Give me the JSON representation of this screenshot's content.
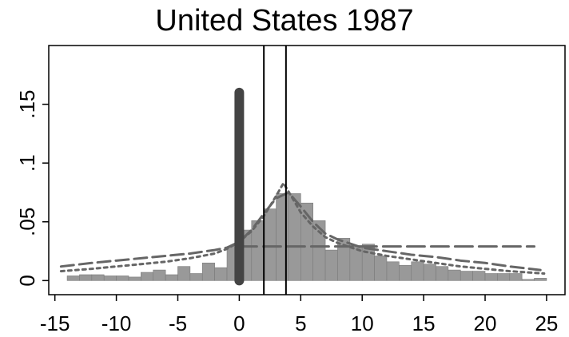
{
  "chart_data": {
    "type": "bar",
    "title": "United States 1987",
    "xlabel": "",
    "ylabel": "",
    "xlim": [
      -15.5,
      26.5
    ],
    "ylim": [
      -0.012,
      0.2
    ],
    "x_ticks": [
      -15,
      -10,
      -5,
      0,
      5,
      10,
      15,
      20,
      25
    ],
    "x_tick_labels": [
      "-15",
      "-10",
      "-5",
      "0",
      "5",
      "10",
      "15",
      "20",
      "25"
    ],
    "y_ticks": [
      0,
      0.05,
      0.1,
      0.15
    ],
    "y_tick_labels": [
      "0",
      ".05",
      ".1",
      ".15"
    ],
    "grid": false,
    "legend": "none",
    "histogram": {
      "bin_width": 1,
      "bin_left_edges": [
        -14,
        -13,
        -12,
        -11,
        -10,
        -9,
        -8,
        -7,
        -6,
        -5,
        -4,
        -3,
        -2,
        -1,
        0,
        1,
        2,
        3,
        4,
        5,
        6,
        7,
        8,
        9,
        10,
        11,
        12,
        13,
        14,
        15,
        16,
        17,
        18,
        19,
        20,
        21,
        22,
        23,
        24
      ],
      "values": [
        0.004,
        0.005,
        0.005,
        0.004,
        0.004,
        0.003,
        0.007,
        0.009,
        0.005,
        0.012,
        0.006,
        0.015,
        0.011,
        0.029,
        0.043,
        0.051,
        0.061,
        0.074,
        0.074,
        0.066,
        0.051,
        0.026,
        0.036,
        0.029,
        0.031,
        0.021,
        0.016,
        0.013,
        0.016,
        0.014,
        0.012,
        0.009,
        0.008,
        0.008,
        0.006,
        0.006,
        0.006,
        0.001,
        0.002
      ],
      "color": "#999999"
    },
    "series": [
      {
        "style": "dashed",
        "x": [
          -14.5,
          -12,
          -10,
          -8,
          -6,
          -4,
          -2,
          -1,
          0,
          1,
          2,
          3,
          4,
          5,
          6,
          7,
          8,
          10,
          12,
          14,
          16,
          18,
          20,
          22,
          24.5
        ],
        "values": [
          0.012,
          0.015,
          0.017,
          0.019,
          0.021,
          0.023,
          0.026,
          0.028,
          0.033,
          0.043,
          0.057,
          0.07,
          0.075,
          0.063,
          0.05,
          0.04,
          0.035,
          0.028,
          0.025,
          0.022,
          0.02,
          0.017,
          0.015,
          0.012,
          0.009
        ]
      },
      {
        "style": "dotted",
        "x": [
          -14.5,
          -12,
          -10,
          -8,
          -6,
          -4,
          -2,
          -1,
          0,
          1,
          2,
          3,
          3.6,
          4.5,
          5,
          6,
          7,
          8,
          10,
          12,
          14,
          16,
          18,
          20,
          22,
          24.8
        ],
        "values": [
          0.008,
          0.01,
          0.012,
          0.014,
          0.016,
          0.019,
          0.023,
          0.027,
          0.033,
          0.042,
          0.055,
          0.072,
          0.083,
          0.067,
          0.058,
          0.046,
          0.037,
          0.032,
          0.025,
          0.021,
          0.018,
          0.015,
          0.012,
          0.01,
          0.008,
          0.006
        ]
      },
      {
        "style": "long-dash",
        "x": [
          0,
          24
        ],
        "values": [
          0.029,
          0.029
        ]
      }
    ],
    "reference_lines": [
      {
        "style": "thick-bar",
        "x": 0,
        "from": 0,
        "to": 0.16
      },
      {
        "style": "thin-line",
        "x": 2
      },
      {
        "style": "thin-line",
        "x": 3.8
      }
    ],
    "colors": {
      "bars": "#999999",
      "bar_edge": "#7a7a7a",
      "curves": "#666666",
      "thick_bar": "#444444",
      "thin_lines": "#000000"
    }
  }
}
